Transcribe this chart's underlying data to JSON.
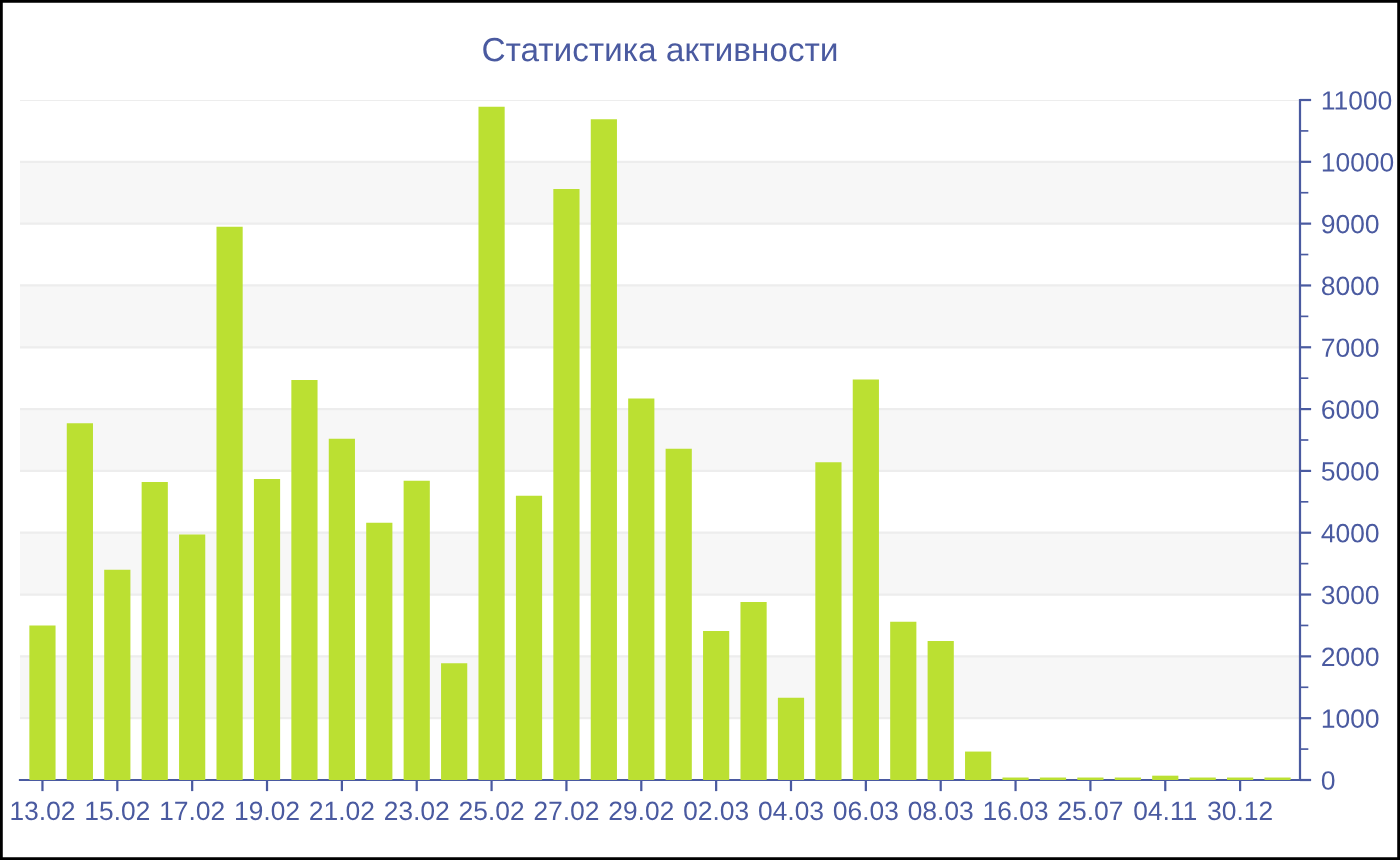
{
  "chart_data": {
    "type": "bar",
    "title": "Статистика активности",
    "categories": [
      "13.02",
      null,
      "15.02",
      null,
      "17.02",
      null,
      "19.02",
      null,
      "21.02",
      null,
      "23.02",
      null,
      "25.02",
      null,
      "27.02",
      null,
      "29.02",
      null,
      "02.03",
      null,
      "04.03",
      null,
      "06.03",
      null,
      "08.03",
      null,
      "16.03",
      null,
      "25.07",
      null,
      "04.11",
      null,
      "30.12",
      null
    ],
    "values": [
      2500,
      5770,
      3400,
      4820,
      3970,
      8950,
      4870,
      6470,
      5520,
      4160,
      4840,
      1890,
      10890,
      4600,
      9560,
      10690,
      6170,
      5360,
      2410,
      2880,
      1330,
      5140,
      6480,
      2560,
      2250,
      460,
      40,
      40,
      40,
      40,
      70,
      40,
      40,
      40
    ],
    "color": "#bbe032",
    "ylim": [
      0,
      11000
    ],
    "yticks": [
      0,
      1000,
      2000,
      3000,
      4000,
      5000,
      6000,
      7000,
      8000,
      9000,
      10000,
      11000
    ],
    "grid": "y",
    "legend": false
  }
}
